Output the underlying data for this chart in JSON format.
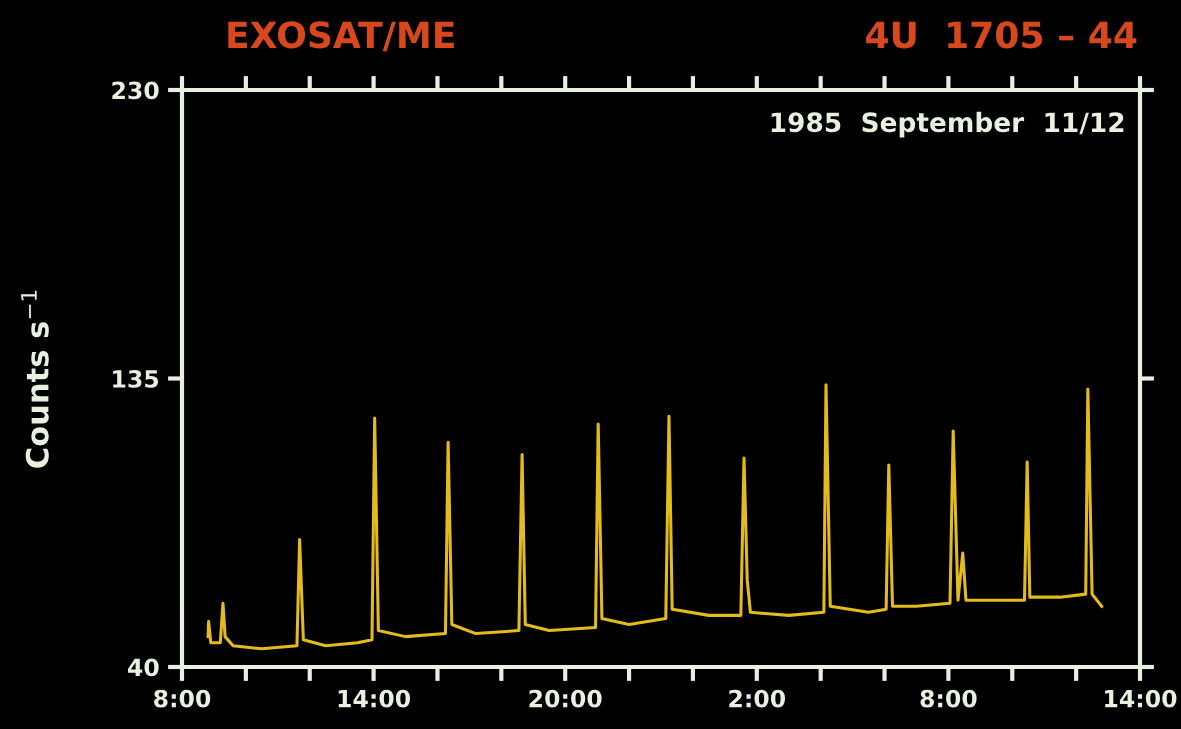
{
  "chart_data": {
    "type": "line",
    "title": "EXOSAT/ME",
    "subtitle": "4U  1705 – 44",
    "ylabel": "Counts s$^{−1}$",
    "annotations": [
      "1985  September  11/12"
    ],
    "xlim": [
      "1985-09-11T08:00",
      "1985-09-12T14:00"
    ],
    "ylim": [
      40,
      230
    ],
    "xticks": [
      {
        "value": "1985-09-11T08:00",
        "label": "8:00"
      },
      {
        "value": "1985-09-11T14:00",
        "label": "14:00"
      },
      {
        "value": "1985-09-11T20:00",
        "label": "20:00"
      },
      {
        "value": "1985-09-12T02:00",
        "label": "2:00"
      },
      {
        "value": "1985-09-12T08:00",
        "label": "8:00"
      },
      {
        "value": "1985-09-12T14:00",
        "label": "14:00"
      }
    ],
    "yticks": [
      40,
      135,
      230
    ],
    "grid": false,
    "legend": false,
    "marker": "none",
    "line_style": "solid",
    "series": [
      {
        "color": "#e3bb1c",
        "x": [
          "1985-09-11T08:49",
          "1985-09-11T08:50",
          "1985-09-11T08:54",
          "1985-09-11T09:12",
          "1985-09-11T09:17",
          "1985-09-11T09:21",
          "1985-09-11T09:36",
          "1985-09-11T10:30",
          "1985-09-11T11:36",
          "1985-09-11T11:41",
          "1985-09-11T11:48",
          "1985-09-11T12:30",
          "1985-09-11T13:30",
          "1985-09-11T13:57",
          "1985-09-11T14:02",
          "1985-09-11T14:09",
          "1985-09-11T15:00",
          "1985-09-11T16:15",
          "1985-09-11T16:20",
          "1985-09-11T16:27",
          "1985-09-11T17:12",
          "1985-09-11T18:33",
          "1985-09-11T18:39",
          "1985-09-11T18:45",
          "1985-09-11T19:30",
          "1985-09-11T20:57",
          "1985-09-11T21:02",
          "1985-09-11T21:09",
          "1985-09-11T22:00",
          "1985-09-11T23:09",
          "1985-09-11T23:15",
          "1985-09-11T23:21",
          "1985-09-12T00:30",
          "1985-09-12T01:30",
          "1985-09-12T01:36",
          "1985-09-12T01:42",
          "1985-09-12T01:48",
          "1985-09-12T03:00",
          "1985-09-12T04:06",
          "1985-09-12T04:10",
          "1985-09-12T04:18",
          "1985-09-12T05:30",
          "1985-09-12T06:03",
          "1985-09-12T06:08",
          "1985-09-12T06:15",
          "1985-09-12T07:00",
          "1985-09-12T08:03",
          "1985-09-12T08:09",
          "1985-09-12T08:18",
          "1985-09-12T08:27",
          "1985-09-12T08:33",
          "1985-09-12T09:30",
          "1985-09-12T10:23",
          "1985-09-12T10:28",
          "1985-09-12T10:33",
          "1985-09-12T11:30",
          "1985-09-12T12:18",
          "1985-09-12T12:22",
          "1985-09-12T12:30",
          "1985-09-12T12:48"
        ],
        "values": [
          50,
          55,
          48,
          48,
          61,
          50,
          47,
          46,
          47,
          82,
          49,
          47,
          48,
          49,
          122,
          52,
          50,
          51,
          114,
          54,
          51,
          52,
          110,
          54,
          52,
          53,
          120,
          56,
          54,
          56,
          122.6,
          59,
          57,
          57,
          108.8,
          68.6,
          58,
          57,
          58,
          132.9,
          60,
          58,
          59,
          106.5,
          60,
          60,
          61,
          117.7,
          62,
          77.5,
          62,
          62,
          62,
          107.5,
          63,
          63,
          64,
          131.5,
          64,
          60
        ]
      }
    ]
  }
}
